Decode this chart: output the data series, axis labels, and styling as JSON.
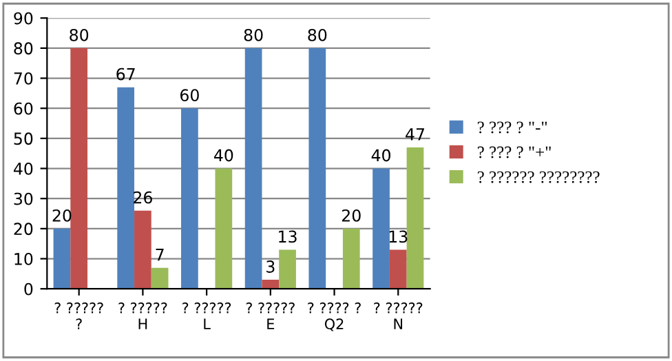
{
  "chart_data": {
    "type": "bar",
    "categories": [
      "? ?????\n?",
      "? ?????\nH",
      "? ?????\nL",
      "? ?????\nE",
      "? ???? ?\nQ2",
      "? ?????\nN"
    ],
    "series": [
      {
        "name": "? ??? ? \"-\"",
        "color": "#4f81bd",
        "values": [
          20,
          67,
          60,
          80,
          80,
          40
        ]
      },
      {
        "name": "? ??? ? \"+\"",
        "color": "#c0504d",
        "values": [
          80,
          26,
          null,
          3,
          null,
          13
        ]
      },
      {
        "name": "? ?????? ????????",
        "color": "#9bbb59",
        "values": [
          null,
          7,
          40,
          13,
          20,
          47
        ]
      }
    ],
    "ylim": [
      0,
      90
    ],
    "yticks": [
      0,
      10,
      20,
      30,
      40,
      50,
      60,
      70,
      80,
      90
    ],
    "grid": "y",
    "legend": "right",
    "data_labels": true
  }
}
